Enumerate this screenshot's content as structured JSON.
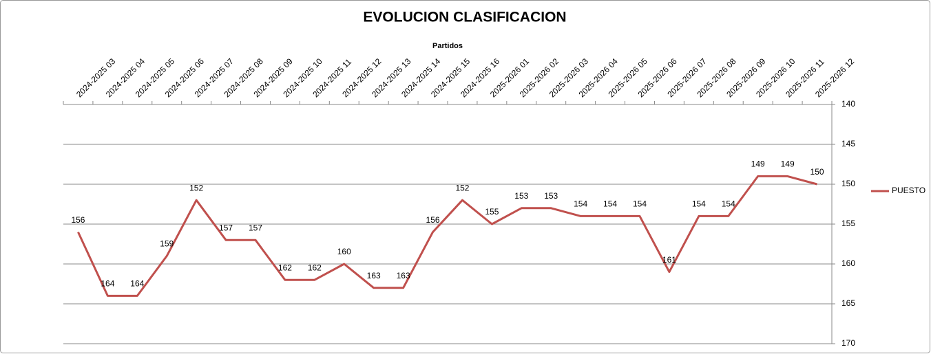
{
  "chart_data": {
    "type": "line",
    "title": "EVOLUCION CLASIFICACION",
    "x_label": "Partidos",
    "categories": [
      "2024-2025 03",
      "2024-2025 04",
      "2024-2025 05",
      "2024-2025 06",
      "2024-2025 07",
      "2024-2025 08",
      "2024-2025 09",
      "2024-2025 10",
      "2024-2025 11",
      "2024-2025 12",
      "2024-2025 13",
      "2024-2025 14",
      "2024-2025 15",
      "2024-2025 16",
      "2025-2026 01",
      "2025-2026 02",
      "2025-2026 03",
      "2025-2026 04",
      "2025-2026 05",
      "2025-2026 06",
      "2025-2026 07",
      "2025-2026 08",
      "2025-2026 09",
      "2025-2026 10",
      "2025-2026 11",
      "2025-2026 12"
    ],
    "series": [
      {
        "name": "PUESTO",
        "color": "#c0504d",
        "values": [
          156,
          164,
          164,
          159,
          152,
          157,
          157,
          162,
          162,
          160,
          163,
          163,
          156,
          152,
          155,
          153,
          153,
          154,
          154,
          154,
          161,
          154,
          154,
          149,
          149,
          150
        ]
      }
    ],
    "ylim": [
      140,
      170
    ],
    "yticks": [
      140,
      145,
      150,
      155,
      160,
      165,
      170
    ],
    "y_reversed": true,
    "y_axis_side": "right",
    "x_axis_side": "top",
    "grid": true,
    "legend_position": "right",
    "data_labels": true
  }
}
